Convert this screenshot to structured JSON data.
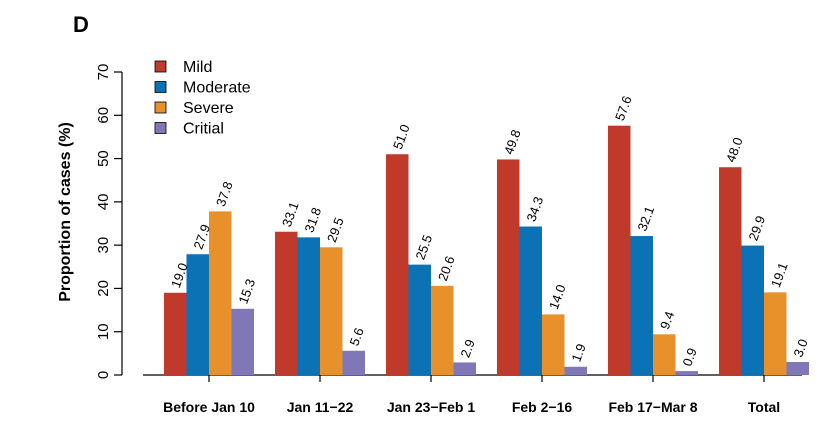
{
  "panel_label": "D",
  "chart_data": {
    "type": "bar",
    "ylabel": "Proportion of cases (%)",
    "xlabel": "",
    "ylim": [
      0,
      70
    ],
    "yticks": [
      0,
      10,
      20,
      30,
      40,
      50,
      60,
      70
    ],
    "grid": false,
    "legend_position": "top-left",
    "categories": [
      "Before Jan 10",
      "Jan 11−22",
      "Jan 23−Feb 1",
      "Feb 2−16",
      "Feb 17−Mar 8",
      "Total"
    ],
    "series": [
      {
        "name": "Mild",
        "color": "#c0392b",
        "values": [
          19.0,
          33.1,
          51.0,
          49.8,
          57.6,
          48.0
        ],
        "labels": [
          "19.0",
          "33.1",
          "51.0",
          "49.8",
          "57.6",
          "48.0"
        ]
      },
      {
        "name": "Moderate",
        "color": "#0a72b5",
        "values": [
          27.9,
          31.8,
          25.5,
          34.3,
          32.1,
          29.9
        ],
        "labels": [
          "27.9",
          "31.8",
          "25.5",
          "34.3",
          "32.1",
          "29.9"
        ]
      },
      {
        "name": "Severe",
        "color": "#e8902a",
        "values": [
          37.8,
          29.5,
          20.6,
          14.0,
          9.4,
          19.1
        ],
        "labels": [
          "37.8",
          "29.5",
          "20.6",
          "14.0",
          "9.4",
          "19.1"
        ]
      },
      {
        "name": "Critial",
        "color": "#8077b8",
        "values": [
          15.3,
          5.6,
          2.9,
          1.9,
          0.9,
          3.0
        ],
        "labels": [
          "15.3",
          "5.6",
          "2.9",
          "1.9",
          "0.9",
          "3.0"
        ]
      }
    ]
  }
}
